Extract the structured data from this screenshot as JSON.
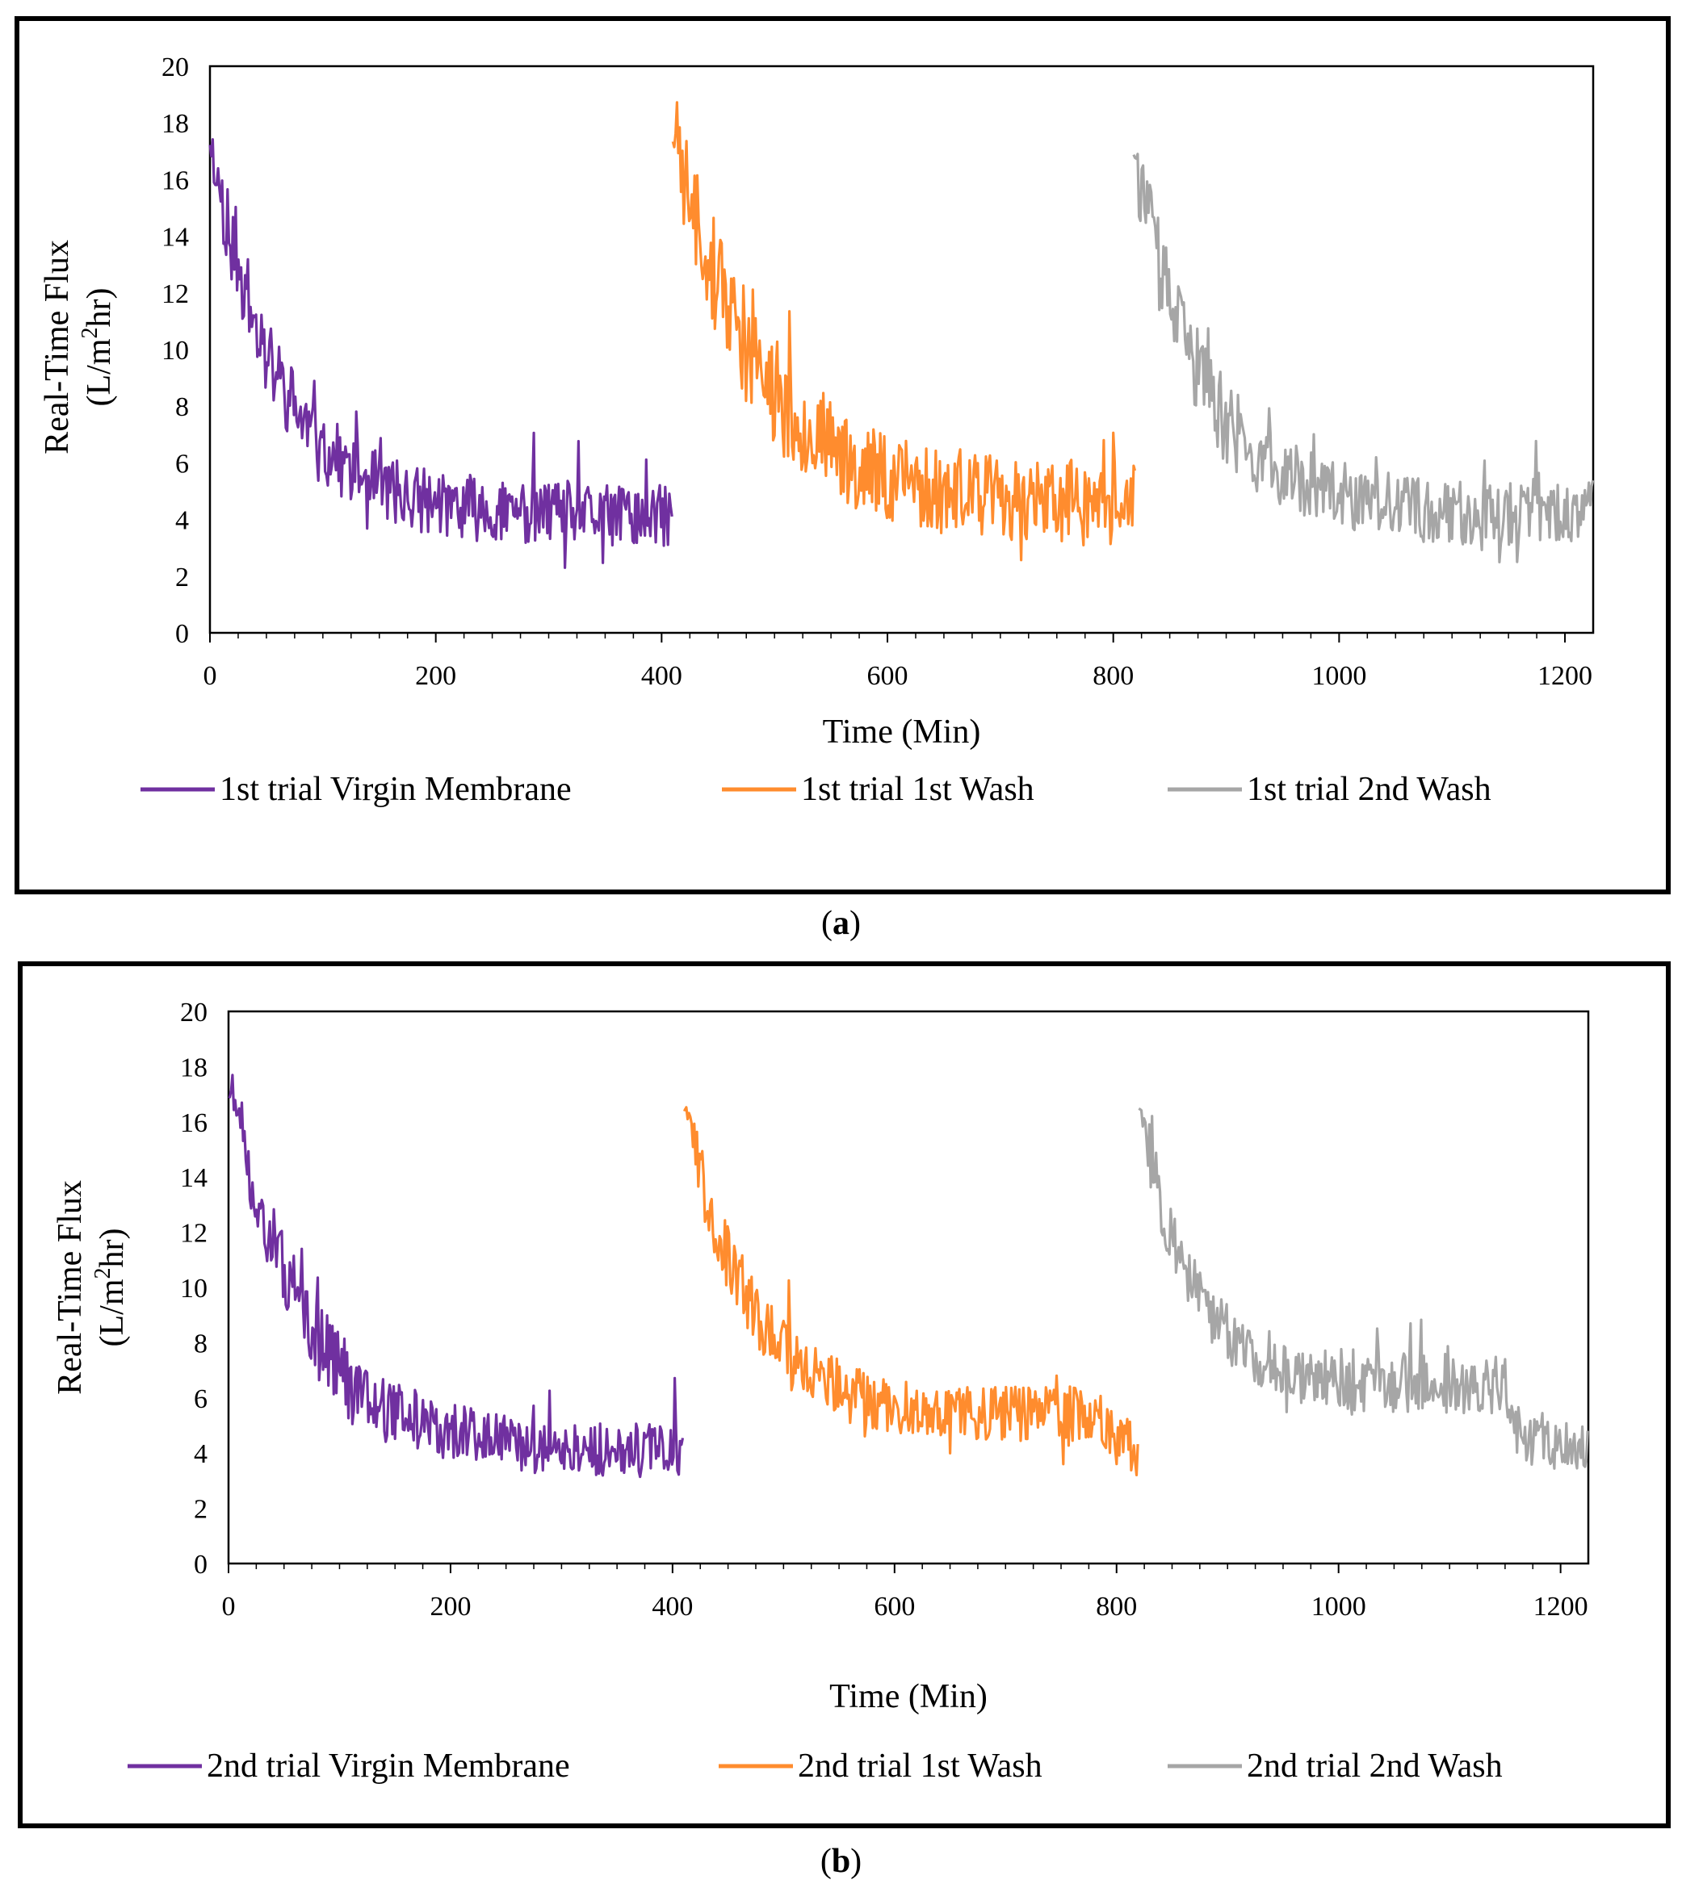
{
  "figure": {
    "captions": [
      {
        "open": "(",
        "letter": "a",
        "close": ")"
      },
      {
        "open": "(",
        "letter": "b",
        "close": ")"
      }
    ],
    "colors": {
      "virgin": "#7030A0",
      "wash1": "#FF8C2E",
      "wash2": "#A6A6A6"
    }
  },
  "chart_data": [
    {
      "panel": "a",
      "type": "line",
      "xlabel": "Time (Min)",
      "ylabel_line1": "Real-Time Flux",
      "ylabel_line2_pre": "(L/m",
      "ylabel_sup": "2",
      "ylabel_line2_post": "hr)",
      "xlim": [
        0,
        1225
      ],
      "ylim": [
        0,
        20
      ],
      "xticks": [
        0,
        200,
        400,
        600,
        800,
        1000,
        1200
      ],
      "yticks": [
        0,
        2,
        4,
        6,
        8,
        10,
        12,
        14,
        16,
        18,
        20
      ],
      "legend_position": "bottom",
      "series": [
        {
          "name": "1st trial Virgin Membrane",
          "color": "#7030A0",
          "x_start": 0,
          "x_end": 410,
          "decay": {
            "start": 17.5,
            "plateau": 4.1,
            "tau": 60
          },
          "plateau_x": [],
          "plateau_y": [],
          "noise": 1.2,
          "seed": 11
        },
        {
          "name": "1st trial 1st Wash",
          "color": "#FF8C2E",
          "x_start": 410,
          "x_end": 820,
          "decay": {
            "start": 17.8,
            "plateau": 4.5,
            "tau": 75
          },
          "plateau_x": [],
          "plateau_y": [],
          "noise": 1.6,
          "seed": 23
        },
        {
          "name": "1st trial 2nd Wash",
          "color": "#A6A6A6",
          "x_start": 818,
          "x_end": 1225,
          "decay": {
            "start": 17.0,
            "plateau": 4.2,
            "tau": 60
          },
          "plateau_x": [],
          "plateau_y": [],
          "noise": 1.3,
          "seed": 37
        }
      ]
    },
    {
      "panel": "b",
      "type": "line",
      "xlabel": "Time (Min)",
      "ylabel_line1": "Real-Time Flux",
      "ylabel_line2_pre": "(L/m",
      "ylabel_sup": "2",
      "ylabel_line2_post": "hr)",
      "xlim": [
        0,
        1225
      ],
      "ylim": [
        0,
        20
      ],
      "xticks": [
        0,
        200,
        400,
        600,
        800,
        1000,
        1200
      ],
      "yticks": [
        0,
        2,
        4,
        6,
        8,
        10,
        12,
        14,
        16,
        18,
        20
      ],
      "legend_position": "bottom",
      "series": [
        {
          "name": "2nd trial Virgin Membrane",
          "color": "#7030A0",
          "x_start": 0,
          "x_end": 410,
          "decay": {
            "start": 17.5,
            "plateau": 4.0,
            "tau": 70
          },
          "plateau_x": [],
          "plateau_y": [],
          "noise": 1.1,
          "seed": 51
        },
        {
          "name": "2nd trial 1st Wash",
          "color": "#FF8C2E",
          "x_start": 410,
          "x_end": 820,
          "decay": {
            "start": 17.0,
            "plateau": 5.4,
            "tau": 55
          },
          "plateau_x": [
            780,
            800,
            820
          ],
          "plateau_y": [
            5.4,
            4.5,
            3.5
          ],
          "noise": 1.0,
          "seed": 67
        },
        {
          "name": "2nd trial 2nd Wash",
          "color": "#A6A6A6",
          "x_start": 820,
          "x_end": 1225,
          "decay": {
            "start": 17.0,
            "plateau": 6.5,
            "tau": 45
          },
          "plateau_x": [
            1140,
            1165,
            1225
          ],
          "plateau_y": [
            6.8,
            4.6,
            4.0
          ],
          "noise": 1.0,
          "seed": 83
        }
      ]
    }
  ]
}
